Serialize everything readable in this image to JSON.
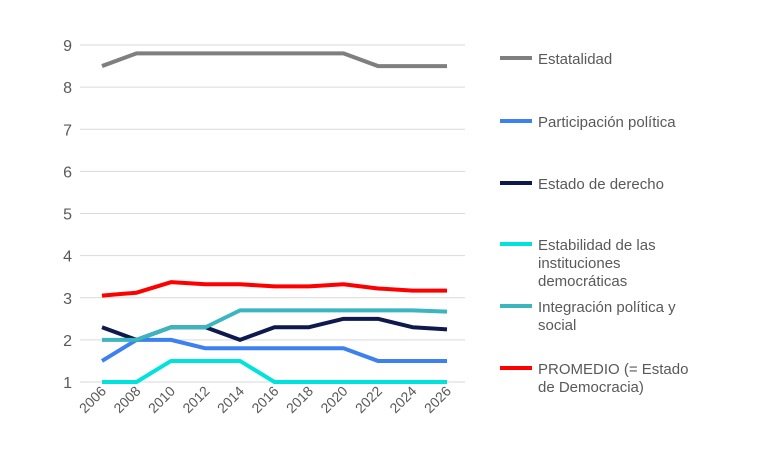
{
  "chart_data": {
    "type": "line",
    "title": "",
    "xlabel": "",
    "ylabel": "",
    "x": [
      "2006",
      "2008",
      "2010",
      "2012",
      "2014",
      "2016",
      "2018",
      "2020",
      "2022",
      "2024",
      "2026"
    ],
    "ylim": [
      1,
      9
    ],
    "yticks": [
      "1",
      "2",
      "3",
      "4",
      "5",
      "6",
      "7",
      "8",
      "9"
    ],
    "grid": true,
    "legend_position": "right",
    "series": [
      {
        "name": "Estatalidad",
        "color": "#7f7f7f",
        "values": [
          8.5,
          8.8,
          8.8,
          8.8,
          8.8,
          8.8,
          8.8,
          8.8,
          8.5,
          8.5,
          8.5
        ]
      },
      {
        "name": "Participación política",
        "color": "#3d80f0",
        "values": [
          1.5,
          2,
          2,
          1.8,
          1.8,
          1.8,
          1.8,
          1.8,
          1.5,
          1.5,
          1.5
        ]
      },
      {
        "name": "Estado de derecho",
        "color": "#0e1a4d",
        "values": [
          2.3,
          2,
          2.3,
          2.3,
          2,
          2.3,
          2.3,
          2.5,
          2.5,
          2.3,
          2.25
        ]
      },
      {
        "name": "Estabilidad de las instituciones democráticas",
        "lines": [
          "Estabilidad de las",
          "instituciones",
          "democráticas"
        ],
        "color": "#00e3dc",
        "values": [
          1,
          1,
          1.5,
          1.5,
          1.5,
          1,
          1,
          1,
          1,
          1,
          1
        ]
      },
      {
        "name": "Integración política y social",
        "lines": [
          "Integración política y",
          "social"
        ],
        "color": "#3bb5c0",
        "values": [
          2,
          2,
          2.3,
          2.3,
          2.7,
          2.7,
          2.7,
          2.7,
          2.7,
          2.7,
          2.67
        ]
      },
      {
        "name": "PROMEDIO (= Estado de Democracia)",
        "lines": [
          "PROMEDIO (= Estado",
          "de Democracia)"
        ],
        "color": "#ff0000",
        "values": [
          3.05,
          3.12,
          3.37,
          3.32,
          3.32,
          3.27,
          3.27,
          3.32,
          3.22,
          3.17,
          3.17
        ]
      }
    ]
  }
}
